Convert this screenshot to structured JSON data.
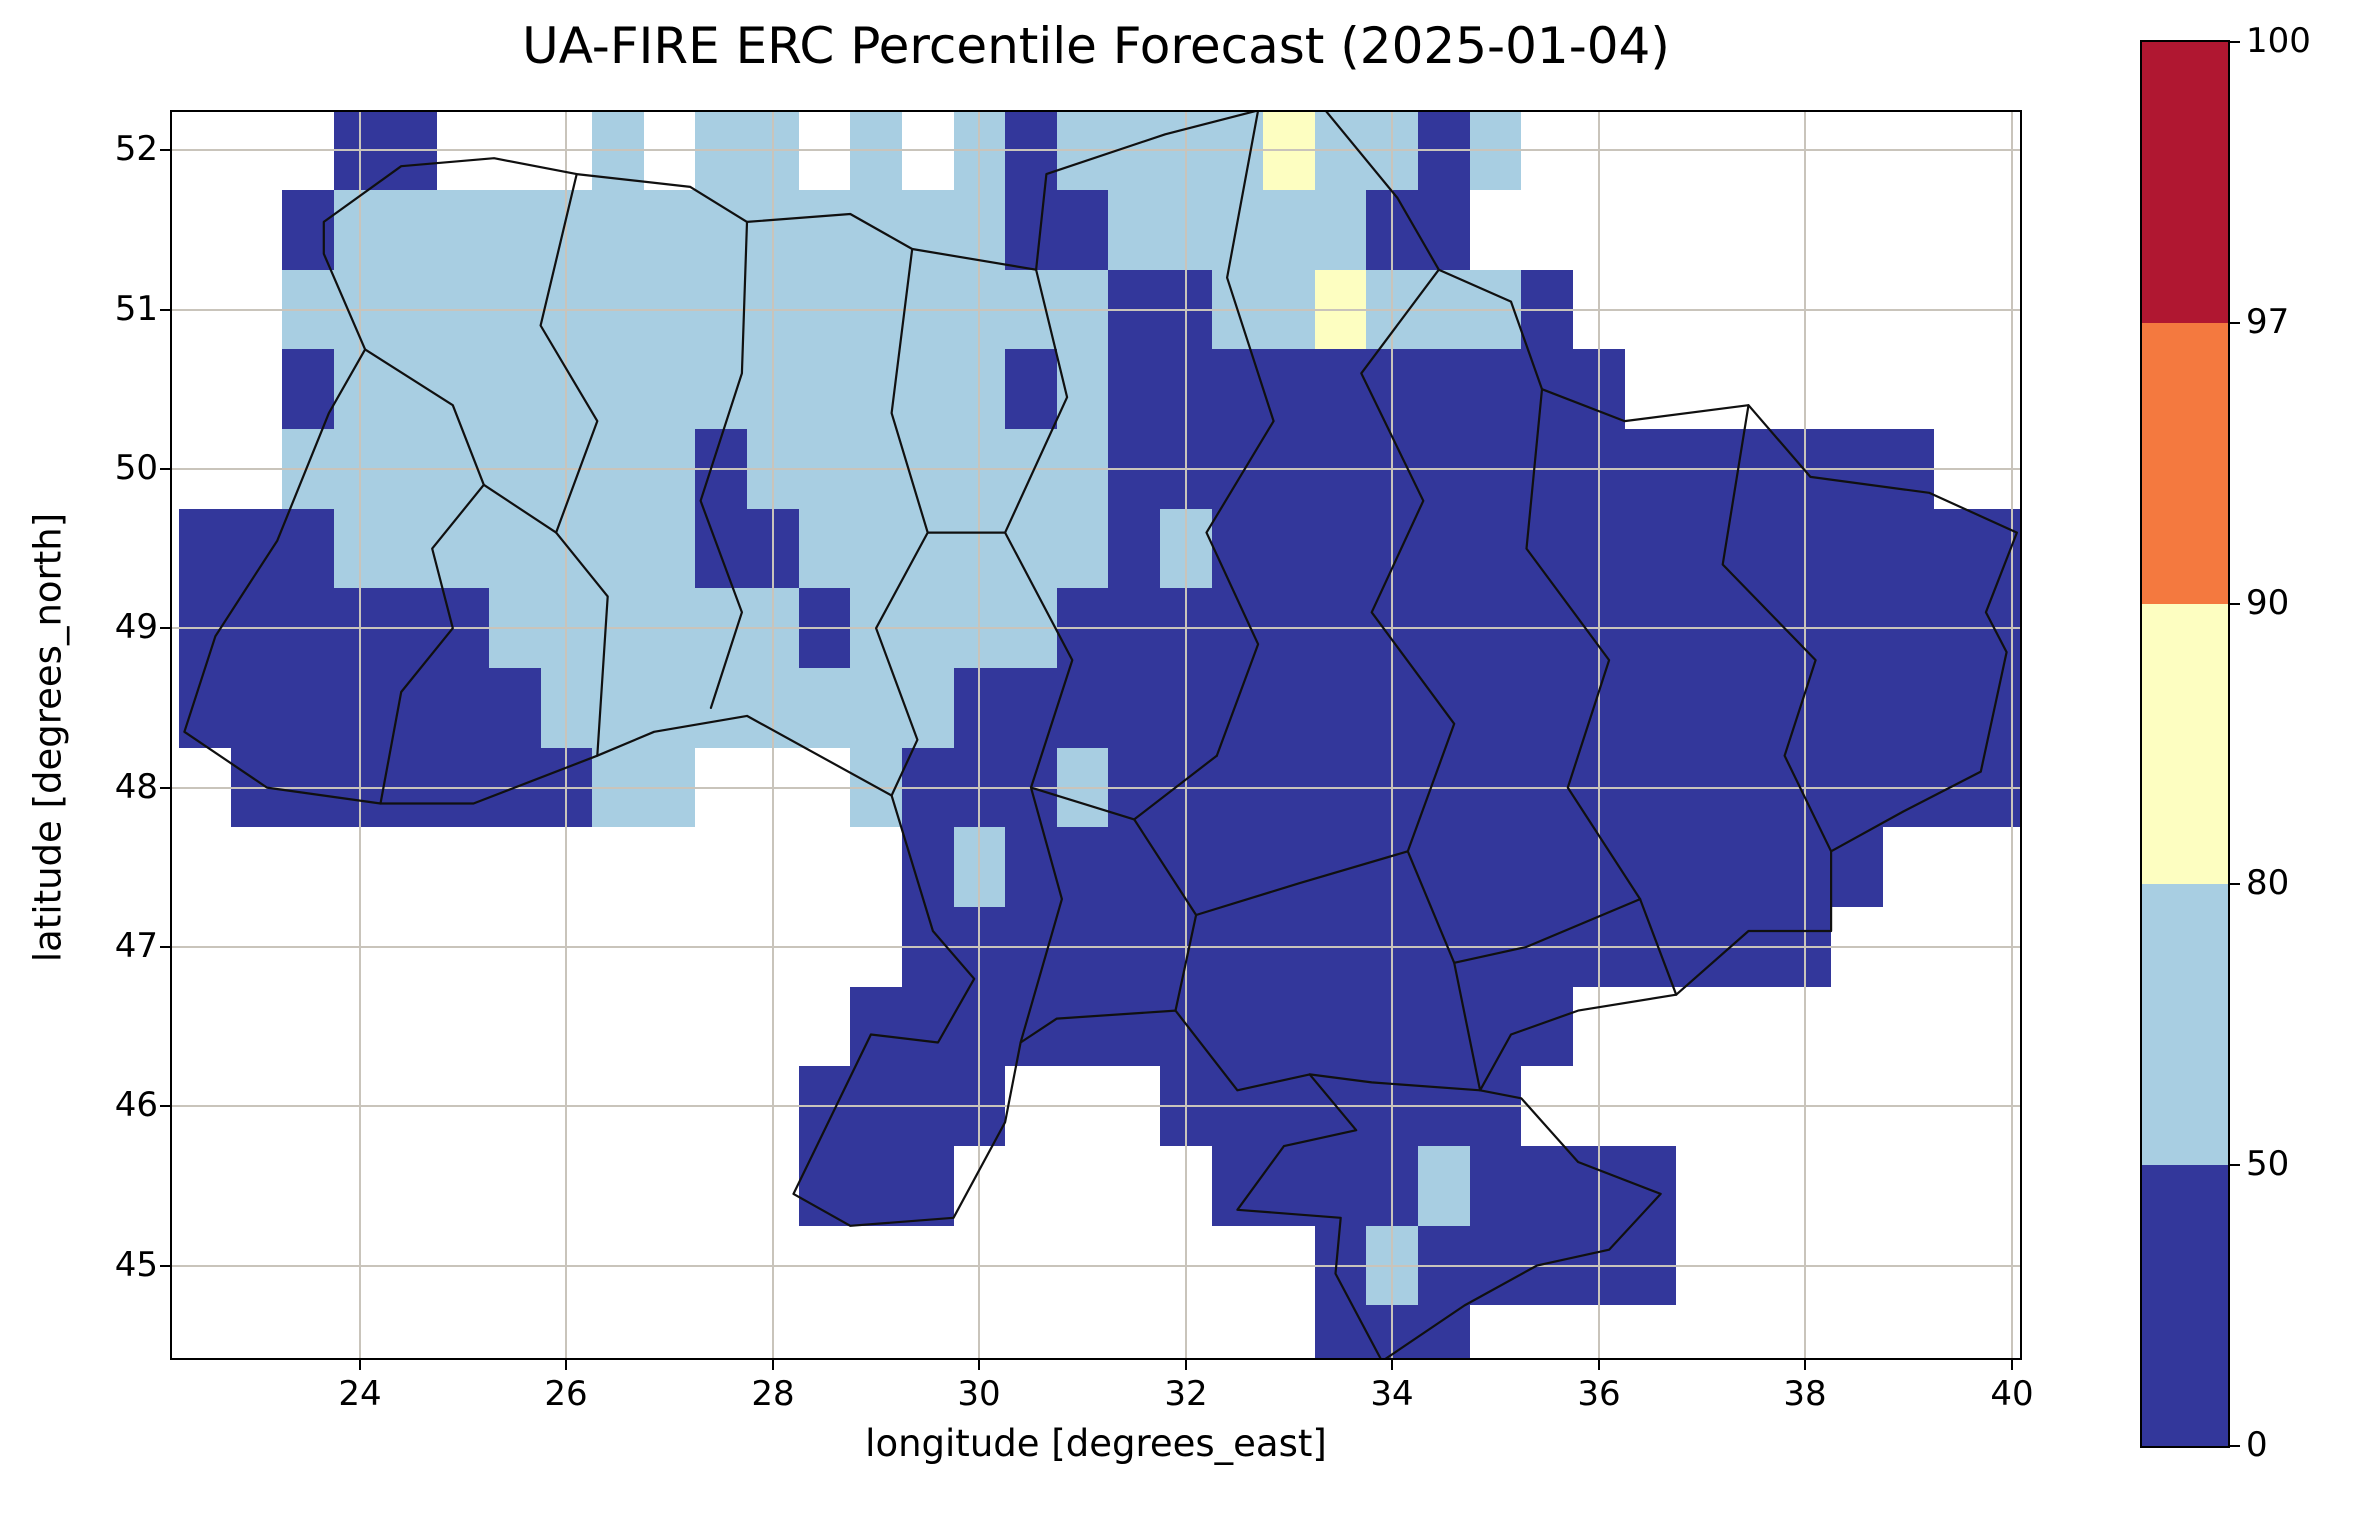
{
  "chart_data": {
    "type": "heatmap",
    "title": "UA-FIRE ERC Percentile Forecast (2025-01-04)",
    "xlabel": "longitude [degrees_east]",
    "ylabel": "latitude [degrees_north]",
    "xlim": [
      22.18,
      40.08
    ],
    "ylim": [
      44.42,
      52.24
    ],
    "xticks": [
      24,
      26,
      28,
      30,
      32,
      34,
      36,
      38,
      40
    ],
    "yticks": [
      45,
      46,
      47,
      48,
      49,
      50,
      51,
      52
    ],
    "grid": true,
    "grid_color": "#c9c4bb",
    "legend_position": "right-colorbar",
    "colorbar": {
      "levels": [
        0,
        50,
        80,
        90,
        97,
        100
      ],
      "tick_labels": [
        "0",
        "50",
        "80",
        "90",
        "97",
        "100"
      ],
      "colors": [
        "#33379b",
        "#a8cee2",
        "#fdfec1",
        "#f4793f",
        "#b01731"
      ]
    },
    "raster": {
      "lon_origin": 22.25,
      "dlon": 0.5,
      "lat_origin": 52.25,
      "dlat": 0.5,
      "palette": {
        "d": "#33379b",
        "l": "#a8cee2",
        "y": "#fdfec1"
      },
      "classes": {
        "d": "percentile 0-50",
        "l": "percentile 50-80",
        "y": "percentile 80-90",
        ".": "no data"
      },
      "rows": [
        "...dd...l.ll.l.ldllllylldl..........",
        "..dlllllllllllllddllllldd...........",
        "..llllllllllllllllddllyllld.........",
        "..dllllllllllllldldddddddddd........",
        "..lllllllldllllllldddddddddddddddd..",
        "dddlllllllddlllllldldddddddddddddddd",
        "ddddddlllllldllllddddddddddddddddddd",
        "dddddddllllllllddddddddddddddddddddd",
        ".dddddddll...ldddldddddddddddddddddd",
        "..............dlddddddddddddddddd...",
        "..............dddddddddddddddddd....",
        ".............dddddddddddddd.........",
        "............dddd...ddddddd..........",
        "............ddd.....ddddldddd.......",
        "......................dlddddd.......",
        "......................ddd..........."
      ]
    },
    "boundaries": [
      [
        [
          22.3,
          48.35
        ],
        [
          22.6,
          48.95
        ],
        [
          22.9,
          49.25
        ],
        [
          23.2,
          49.55
        ],
        [
          23.7,
          50.35
        ],
        [
          24.05,
          50.75
        ],
        [
          23.65,
          51.35
        ],
        [
          23.65,
          51.55
        ],
        [
          24.4,
          51.9
        ],
        [
          25.3,
          51.95
        ],
        [
          26.1,
          51.85
        ],
        [
          27.2,
          51.77
        ],
        [
          27.75,
          51.55
        ],
        [
          28.75,
          51.6
        ],
        [
          29.35,
          51.38
        ],
        [
          30.55,
          51.25
        ],
        [
          30.65,
          51.85
        ],
        [
          31.8,
          52.1
        ],
        [
          32.7,
          52.25
        ],
        [
          33.2,
          52.37
        ],
        [
          34.05,
          51.7
        ],
        [
          34.45,
          51.25
        ],
        [
          35.15,
          51.05
        ],
        [
          35.45,
          50.5
        ],
        [
          36.25,
          50.3
        ],
        [
          37.45,
          50.4
        ],
        [
          38.05,
          49.95
        ],
        [
          39.2,
          49.85
        ],
        [
          40.05,
          49.6
        ],
        [
          39.75,
          49.1
        ],
        [
          39.95,
          48.85
        ],
        [
          39.7,
          48.1
        ],
        [
          38.95,
          47.85
        ],
        [
          38.25,
          47.6
        ],
        [
          38.25,
          47.1
        ],
        [
          37.45,
          47.1
        ],
        [
          36.75,
          46.7
        ],
        [
          35.8,
          46.6
        ],
        [
          35.15,
          46.45
        ],
        [
          34.85,
          46.1
        ],
        [
          35.25,
          46.05
        ],
        [
          35.8,
          45.65
        ],
        [
          36.6,
          45.45
        ],
        [
          36.1,
          45.1
        ],
        [
          35.4,
          45.0
        ],
        [
          34.7,
          44.75
        ],
        [
          33.9,
          44.4
        ],
        [
          33.45,
          44.95
        ],
        [
          33.5,
          45.3
        ],
        [
          32.5,
          45.35
        ],
        [
          32.95,
          45.75
        ],
        [
          33.65,
          45.85
        ],
        [
          33.2,
          46.2
        ],
        [
          32.5,
          46.1
        ],
        [
          31.9,
          46.6
        ],
        [
          30.75,
          46.55
        ],
        [
          30.4,
          46.4
        ],
        [
          30.25,
          45.9
        ],
        [
          29.75,
          45.3
        ],
        [
          28.75,
          45.25
        ],
        [
          28.2,
          45.45
        ],
        [
          28.95,
          46.45
        ],
        [
          29.6,
          46.4
        ],
        [
          29.95,
          46.8
        ],
        [
          29.55,
          47.1
        ],
        [
          29.15,
          47.95
        ],
        [
          27.75,
          48.45
        ],
        [
          26.85,
          48.35
        ],
        [
          26.3,
          48.2
        ],
        [
          25.1,
          47.9
        ],
        [
          24.2,
          47.9
        ],
        [
          23.1,
          48.0
        ],
        [
          22.3,
          48.35
        ]
      ],
      [
        [
          24.05,
          50.75
        ],
        [
          24.9,
          50.4
        ],
        [
          25.2,
          49.9
        ],
        [
          24.7,
          49.5
        ],
        [
          24.9,
          49.0
        ],
        [
          24.4,
          48.6
        ],
        [
          24.2,
          47.9
        ]
      ],
      [
        [
          26.1,
          51.85
        ],
        [
          25.75,
          50.9
        ],
        [
          26.3,
          50.3
        ],
        [
          25.9,
          49.6
        ],
        [
          26.4,
          49.2
        ],
        [
          26.3,
          48.2
        ]
      ],
      [
        [
          27.75,
          51.55
        ],
        [
          27.7,
          50.6
        ],
        [
          27.3,
          49.8
        ],
        [
          27.7,
          49.1
        ],
        [
          27.4,
          48.5
        ]
      ],
      [
        [
          29.35,
          51.38
        ],
        [
          29.15,
          50.35
        ],
        [
          29.5,
          49.6
        ],
        [
          29.0,
          49.0
        ],
        [
          29.4,
          48.3
        ],
        [
          29.15,
          47.95
        ]
      ],
      [
        [
          30.55,
          51.25
        ],
        [
          30.85,
          50.45
        ],
        [
          30.25,
          49.6
        ],
        [
          30.9,
          48.8
        ],
        [
          30.5,
          48.0
        ],
        [
          30.8,
          47.3
        ],
        [
          30.4,
          46.4
        ]
      ],
      [
        [
          32.7,
          52.25
        ],
        [
          32.4,
          51.2
        ],
        [
          32.85,
          50.3
        ],
        [
          32.2,
          49.6
        ],
        [
          32.7,
          48.9
        ],
        [
          32.3,
          48.2
        ]
      ],
      [
        [
          34.45,
          51.25
        ],
        [
          33.7,
          50.6
        ],
        [
          34.3,
          49.8
        ],
        [
          33.8,
          49.1
        ],
        [
          34.6,
          48.4
        ],
        [
          34.15,
          47.6
        ],
        [
          34.6,
          46.9
        ],
        [
          34.85,
          46.1
        ]
      ],
      [
        [
          35.45,
          50.5
        ],
        [
          35.3,
          49.5
        ],
        [
          36.1,
          48.8
        ],
        [
          35.7,
          48.0
        ],
        [
          36.4,
          47.3
        ],
        [
          36.75,
          46.7
        ]
      ],
      [
        [
          37.45,
          50.4
        ],
        [
          37.2,
          49.4
        ],
        [
          38.1,
          48.8
        ],
        [
          37.8,
          48.2
        ],
        [
          38.25,
          47.6
        ]
      ],
      [
        [
          32.3,
          48.2
        ],
        [
          31.5,
          47.8
        ],
        [
          32.1,
          47.2
        ],
        [
          31.9,
          46.6
        ]
      ],
      [
        [
          33.2,
          46.2
        ],
        [
          33.8,
          46.15
        ],
        [
          34.85,
          46.1
        ]
      ],
      [
        [
          25.2,
          49.9
        ],
        [
          25.9,
          49.6
        ]
      ],
      [
        [
          29.5,
          49.6
        ],
        [
          30.25,
          49.6
        ]
      ],
      [
        [
          31.5,
          47.8
        ],
        [
          30.5,
          48.0
        ]
      ],
      [
        [
          34.15,
          47.6
        ],
        [
          33.1,
          47.4
        ],
        [
          32.1,
          47.2
        ]
      ],
      [
        [
          36.4,
          47.3
        ],
        [
          35.3,
          47.0
        ],
        [
          34.6,
          46.9
        ]
      ]
    ]
  }
}
